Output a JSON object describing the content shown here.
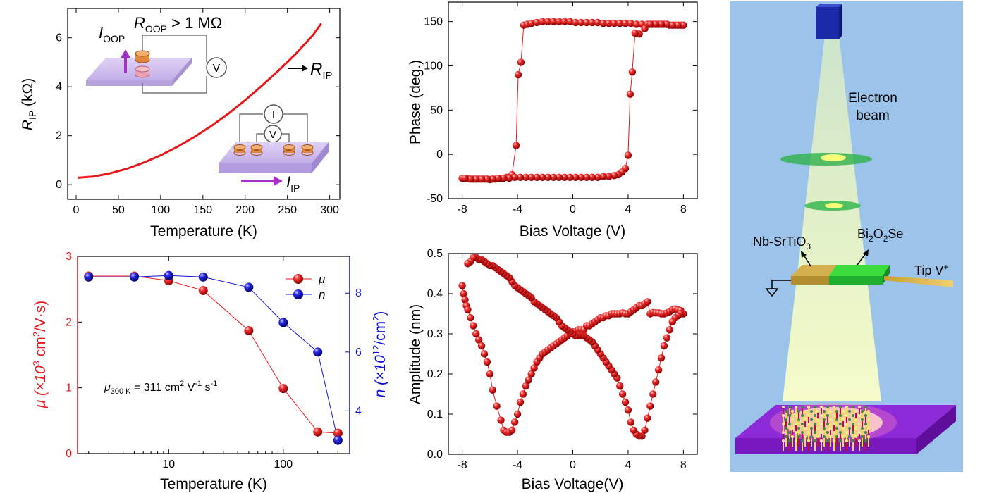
{
  "colors": {
    "red": "#e8181b",
    "blue": "#1414d8",
    "purple": "#a531c8",
    "schematic_bg": "#9cc3ea"
  },
  "chart_data": [
    {
      "id": "rip_vs_t",
      "type": "line",
      "xlabel": "Temperature (K)",
      "ylabel": {
        "main": "R",
        "sub": "IP",
        "rest": " (kΩ)"
      },
      "xlim": [
        -10,
        312
      ],
      "ylim": [
        -0.6,
        7.2
      ],
      "xticks": [
        "0",
        "50",
        "100",
        "150",
        "200",
        "250",
        "300"
      ],
      "yticks": [
        "0",
        "2",
        "4",
        "6"
      ],
      "series": [
        {
          "name": "R_IP",
          "x": [
            2,
            20,
            40,
            60,
            80,
            100,
            120,
            140,
            160,
            180,
            200,
            220,
            240,
            260,
            280,
            290
          ],
          "y": [
            0.28,
            0.33,
            0.46,
            0.65,
            0.9,
            1.2,
            1.55,
            1.95,
            2.4,
            2.9,
            3.45,
            4.05,
            4.68,
            5.35,
            6.1,
            6.58
          ]
        }
      ],
      "annotations": {
        "roop": {
          "main": "R",
          "sub": "OOP",
          "rest": " > 1 MΩ"
        },
        "ioop": {
          "main": "I",
          "sub": "OOP"
        },
        "rip": {
          "main": "R",
          "sub": "IP"
        },
        "iip": {
          "main": "I",
          "sub": "IP"
        },
        "voltmeter": "V",
        "ammeter": "I"
      }
    },
    {
      "id": "phase_loop",
      "type": "scatter",
      "xlabel": "Bias Voltage (V)",
      "ylabel": "Phase (deg.)",
      "xlim": [
        -9,
        9
      ],
      "ylim": [
        -50,
        172
      ],
      "xticks": [
        "-8",
        "-4",
        "0",
        "4",
        "8"
      ],
      "yticks": [
        "-50",
        "0",
        "50",
        "100",
        "150"
      ],
      "series": [
        {
          "name": "forward",
          "x": [
            -8.0,
            -7.6,
            -7.2,
            -6.8,
            -6.4,
            -6.0,
            -5.6,
            -5.2,
            -4.8,
            -4.4,
            -4.1,
            -3.95,
            -3.75,
            -3.55,
            -3.3,
            -3.0,
            -2.6,
            -2.2,
            -1.8,
            -1.4,
            -1.0,
            -0.6,
            -0.2,
            0.2,
            0.6,
            1.0,
            1.4,
            1.8,
            2.2,
            2.6,
            3.0,
            3.4,
            3.8,
            4.2,
            4.6,
            5.0,
            5.4,
            5.8,
            6.2,
            6.6,
            7.0,
            7.4,
            7.8
          ],
          "y": [
            -27,
            -27.5,
            -28,
            -28,
            -28,
            -28.5,
            -28,
            -27,
            -26,
            -23,
            10,
            90,
            104,
            146,
            147,
            148,
            149,
            150,
            150,
            150,
            150,
            150,
            150,
            149,
            149,
            149,
            149,
            149,
            148,
            148,
            148,
            148,
            148,
            148,
            147,
            147,
            147,
            147,
            147,
            147,
            146,
            146,
            146
          ]
        },
        {
          "name": "reverse",
          "x": [
            8.0,
            7.6,
            7.2,
            6.8,
            6.4,
            6.0,
            5.6,
            5.2,
            4.8,
            4.5,
            4.3,
            4.15,
            4.0,
            3.8,
            3.55,
            3.3,
            3.0,
            2.6,
            2.2,
            1.8,
            1.4,
            1.0,
            0.6,
            0.2,
            -0.2,
            -0.6,
            -1.0,
            -1.4,
            -1.8,
            -2.2,
            -2.6,
            -3.0,
            -3.4,
            -3.8,
            -4.2,
            -4.6,
            -5.0,
            -5.4,
            -5.8,
            -6.2,
            -6.6,
            -7.0,
            -7.4,
            -7.8
          ],
          "y": [
            146,
            146,
            146,
            147,
            147,
            147,
            147,
            142,
            136,
            137,
            93,
            68,
            -1,
            -16,
            -20,
            -23,
            -24,
            -25,
            -25,
            -26,
            -26,
            -26,
            -26,
            -26,
            -26,
            -26,
            -26,
            -26,
            -26,
            -26,
            -26,
            -26,
            -26,
            -26,
            -26,
            -27,
            -27,
            -27,
            -28,
            -28,
            -28,
            -28,
            -28,
            -27
          ]
        }
      ]
    },
    {
      "id": "mobility_density",
      "type": "line",
      "xlabel": "Temperature (K)",
      "ylabel_left": {
        "pre": "μ (×10",
        "sup": "3",
        "post": " cm",
        "sup2": "2",
        "end": "/V·s)"
      },
      "ylabel_right": {
        "pre": "n (×10",
        "sup": "12",
        "post": "/cm",
        "sup2": "2",
        "end": ")"
      },
      "x_scale": "log",
      "xlim": [
        1.6,
        380
      ],
      "ylim": [
        0,
        3
      ],
      "ylim_right": [
        2.55,
        9.25
      ],
      "xticks": [
        "10",
        "100"
      ],
      "yticks": [
        "0",
        "1",
        "2",
        "3"
      ],
      "yticks_right": [
        "4",
        "6",
        "8"
      ],
      "legend": {
        "mu": "μ",
        "n": "n"
      },
      "note": {
        "mu": "μ",
        "sub": "300 K",
        "mid": " = 311 cm",
        "sup1": "2",
        "mid2": " V",
        "sup2": "-1",
        "mid3": " s",
        "sup3": "-1"
      },
      "series": [
        {
          "name": "μ",
          "axis": "left",
          "color": "red",
          "x": [
            2,
            5,
            10,
            20,
            50,
            100,
            200,
            300
          ],
          "y": [
            2.7,
            2.7,
            2.63,
            2.48,
            1.87,
            0.99,
            0.33,
            0.31
          ]
        },
        {
          "name": "n",
          "axis": "right",
          "color": "blue",
          "x": [
            2,
            5,
            10,
            20,
            50,
            100,
            200,
            300
          ],
          "y": [
            8.55,
            8.55,
            8.6,
            8.55,
            8.2,
            7.0,
            6.0,
            3.0
          ]
        }
      ]
    },
    {
      "id": "amplitude_loop",
      "type": "scatter",
      "xlabel": "Bias Voltage(V)",
      "ylabel": "Amplitude (nm)",
      "xlim": [
        -9,
        9
      ],
      "ylim": [
        0,
        0.5
      ],
      "xticks": [
        "-8",
        "-4",
        "0",
        "4",
        "8"
      ],
      "yticks": [
        "0.0",
        "0.1",
        "0.2",
        "0.3",
        "0.4",
        "0.5"
      ],
      "series": [
        {
          "name": "forward",
          "x": [
            -8.0,
            -7.9,
            -7.8,
            -7.7,
            -7.6,
            -7.4,
            -7.2,
            -7.0,
            -6.8,
            -6.6,
            -6.4,
            -6.2,
            -6.0,
            -5.8,
            -5.5,
            -5.2,
            -5.0,
            -4.8,
            -4.6,
            -4.4,
            -4.2,
            -4.0,
            -3.8,
            -3.6,
            -3.4,
            -3.2,
            -3.0,
            -2.8,
            -2.6,
            -2.4,
            -2.2,
            -2.0,
            -1.8,
            -1.6,
            -1.4,
            -1.2,
            -1.0,
            -0.8,
            -0.6,
            -0.4,
            -0.2,
            0,
            0.2,
            0.4,
            0.6,
            0.8,
            1.0,
            1.2,
            1.4,
            1.6,
            1.8,
            2.0,
            2.2,
            2.4,
            2.6,
            2.8,
            3.0,
            3.2,
            3.4,
            3.6,
            3.8,
            4.0,
            4.2,
            4.4,
            4.6,
            4.8,
            5.0,
            5.2,
            5.4,
            5.6,
            5.8,
            6.0,
            6.2,
            6.4,
            6.6,
            6.8,
            7.0,
            7.2,
            7.4,
            7.6,
            7.8,
            8.0
          ],
          "y": [
            0.42,
            0.4,
            0.385,
            0.37,
            0.36,
            0.34,
            0.32,
            0.3,
            0.285,
            0.27,
            0.25,
            0.23,
            0.2,
            0.16,
            0.12,
            0.085,
            0.06,
            0.055,
            0.055,
            0.06,
            0.08,
            0.1,
            0.13,
            0.15,
            0.17,
            0.185,
            0.2,
            0.215,
            0.23,
            0.24,
            0.25,
            0.255,
            0.26,
            0.265,
            0.27,
            0.275,
            0.28,
            0.285,
            0.29,
            0.295,
            0.3,
            0.305,
            0.305,
            0.31,
            0.31,
            0.31,
            0.32,
            0.32,
            0.325,
            0.33,
            0.335,
            0.34,
            0.34,
            0.345,
            0.345,
            0.35,
            0.35,
            0.35,
            0.35,
            0.352,
            0.35,
            0.35,
            0.355,
            0.36,
            0.365,
            0.37,
            0.37,
            0.375,
            0.38,
            0.35,
            0.353,
            0.352,
            0.352,
            0.35,
            0.35,
            0.352,
            0.355,
            0.36,
            0.362,
            0.36,
            0.358,
            0.35
          ]
        },
        {
          "name": "reverse",
          "x": [
            7.8,
            7.6,
            7.4,
            7.2,
            7.0,
            6.8,
            6.6,
            6.4,
            6.2,
            6.0,
            5.8,
            5.6,
            5.4,
            5.2,
            5.0,
            4.8,
            4.6,
            4.4,
            4.2,
            4.0,
            3.8,
            3.6,
            3.4,
            3.2,
            3.0,
            2.8,
            2.6,
            2.4,
            2.2,
            2.0,
            1.8,
            1.6,
            1.4,
            1.2,
            1.0,
            0.8,
            0.6,
            0.4,
            0.2,
            0,
            -0.2,
            -0.4,
            -0.6,
            -0.8,
            -1.0,
            -1.2,
            -1.4,
            -1.6,
            -1.8,
            -2.0,
            -2.2,
            -2.4,
            -2.6,
            -2.8,
            -3.0,
            -3.2,
            -3.4,
            -3.6,
            -3.8,
            -4.0,
            -4.2,
            -4.4,
            -4.6,
            -4.8,
            -5.0,
            -5.2,
            -5.4,
            -5.6,
            -5.8,
            -6.0,
            -6.2,
            -6.4,
            -6.6,
            -6.8,
            -7.0,
            -7.2,
            -7.4,
            -7.6
          ],
          "y": [
            0.35,
            0.345,
            0.34,
            0.33,
            0.31,
            0.29,
            0.27,
            0.24,
            0.21,
            0.18,
            0.15,
            0.12,
            0.09,
            0.06,
            0.045,
            0.045,
            0.05,
            0.06,
            0.08,
            0.11,
            0.13,
            0.15,
            0.17,
            0.19,
            0.2,
            0.21,
            0.22,
            0.23,
            0.24,
            0.25,
            0.26,
            0.27,
            0.28,
            0.285,
            0.29,
            0.295,
            0.295,
            0.295,
            0.295,
            0.3,
            0.305,
            0.31,
            0.315,
            0.32,
            0.33,
            0.34,
            0.345,
            0.35,
            0.355,
            0.36,
            0.365,
            0.37,
            0.375,
            0.38,
            0.39,
            0.395,
            0.4,
            0.405,
            0.41,
            0.415,
            0.42,
            0.43,
            0.44,
            0.445,
            0.45,
            0.455,
            0.46,
            0.465,
            0.47,
            0.47,
            0.475,
            0.48,
            0.485,
            0.485,
            0.49,
            0.49,
            0.48,
            0.475
          ]
        }
      ]
    }
  ],
  "schematic": {
    "electron_beam": [
      "Electron",
      "beam"
    ],
    "substrate_label": {
      "pre": "Nb-SrTiO",
      "sub": "3"
    },
    "film_label": {
      "pre": "Bi",
      "sub1": "2",
      "mid": "O",
      "sub2": "2",
      "post": "Se"
    },
    "tip_label": {
      "pre": "Tip V",
      "sup": "+"
    }
  }
}
